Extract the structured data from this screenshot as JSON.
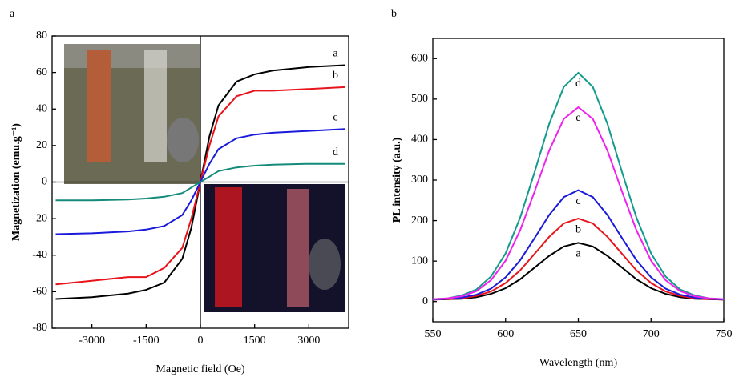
{
  "chart_data": [
    {
      "type": "line",
      "panel_label": "a",
      "x_label": "Magnetic field (Oe)",
      "y_label": "Magnetization (emu.g⁻¹)",
      "x": [
        -4000,
        -3000,
        -2000,
        -1500,
        -1000,
        -500,
        -250,
        0,
        250,
        500,
        1000,
        1500,
        2000,
        3000,
        4000
      ],
      "series": [
        {
          "name": "a",
          "color": "#000000",
          "values": [
            -64,
            -63,
            -61,
            -59,
            -55,
            -42,
            -25,
            0,
            25,
            42,
            55,
            59,
            61,
            63,
            64
          ]
        },
        {
          "name": "b",
          "color": "#e8141b",
          "values": [
            -56,
            -54,
            -52,
            -52,
            -47,
            -36,
            -20,
            0,
            20,
            36,
            47,
            50,
            50,
            51,
            52
          ]
        },
        {
          "name": "c",
          "color": "#1a1adb",
          "values": [
            -28.5,
            -28,
            -27,
            -26,
            -24,
            -18,
            -10,
            0,
            10,
            18,
            24,
            26,
            27,
            28,
            29
          ]
        },
        {
          "name": "d",
          "color": "#138a7a",
          "values": [
            -10,
            -10,
            -9.5,
            -9,
            -8,
            -6,
            -3,
            0,
            3,
            6,
            8,
            9,
            9.5,
            10,
            10
          ]
        }
      ],
      "xlim": [
        -4100,
        4100
      ],
      "xticks": [
        -3000,
        -1500,
        0,
        1500,
        3000
      ],
      "ylim": [
        -80,
        80
      ],
      "yticks": [
        -80,
        -60,
        -40,
        -20,
        0,
        20,
        40,
        60,
        80
      ]
    },
    {
      "type": "line",
      "panel_label": "b",
      "x_label": "Wavelength (nm)",
      "y_label": "PL intensity (a.u.)",
      "x": [
        550,
        560,
        570,
        580,
        590,
        600,
        610,
        620,
        630,
        640,
        650,
        660,
        670,
        680,
        690,
        700,
        710,
        720,
        730,
        740,
        750
      ],
      "series": [
        {
          "name": "a",
          "color": "#000000",
          "values": [
            5,
            6,
            7,
            11,
            19,
            33,
            55,
            84,
            113,
            136,
            145,
            136,
            113,
            84,
            55,
            33,
            19,
            11,
            7,
            6,
            5
          ]
        },
        {
          "name": "b",
          "color": "#e8141b",
          "values": [
            5,
            6,
            8,
            14,
            25,
            46,
            77,
            118,
            160,
            193,
            205,
            193,
            160,
            118,
            77,
            46,
            25,
            14,
            8,
            6,
            5
          ]
        },
        {
          "name": "c",
          "color": "#1a1adb",
          "values": [
            5,
            7,
            10,
            17,
            32,
            60,
            102,
            157,
            214,
            258,
            275,
            258,
            214,
            157,
            102,
            60,
            32,
            17,
            10,
            7,
            5
          ]
        },
        {
          "name": "d",
          "color": "#129a8a",
          "values": [
            6,
            8,
            15,
            30,
            62,
            119,
            207,
            320,
            439,
            530,
            565,
            530,
            439,
            320,
            207,
            119,
            62,
            30,
            15,
            8,
            6
          ]
        },
        {
          "name": "e",
          "color": "#ee22ee",
          "values": [
            6,
            8,
            13,
            26,
            53,
            101,
            176,
            272,
            373,
            451,
            480,
            451,
            373,
            272,
            176,
            101,
            53,
            26,
            13,
            8,
            6
          ]
        }
      ],
      "xlim": [
        550,
        750
      ],
      "xticks": [
        550,
        600,
        650,
        700,
        750
      ],
      "ylim": [
        -50,
        650
      ],
      "yticks": [
        0,
        100,
        200,
        300,
        400,
        500,
        600
      ]
    }
  ]
}
